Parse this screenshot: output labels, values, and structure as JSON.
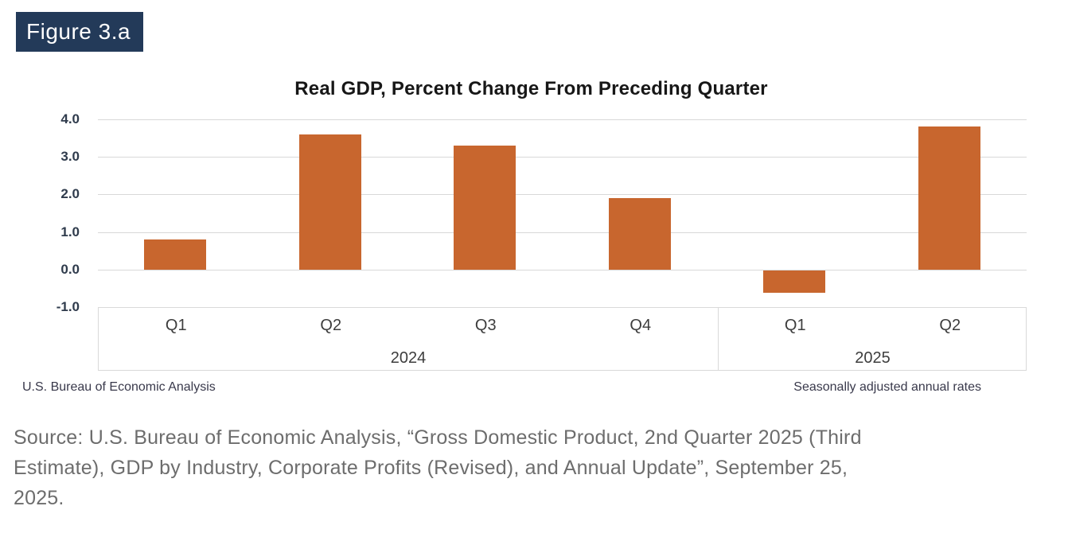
{
  "figure_label": "Figure 3.a",
  "chart_data": {
    "type": "bar",
    "title": "Real GDP, Percent Change From Preceding Quarter",
    "categories": [
      "Q1",
      "Q2",
      "Q3",
      "Q4",
      "Q1",
      "Q2"
    ],
    "values": [
      0.8,
      3.6,
      3.3,
      1.9,
      -0.6,
      3.8
    ],
    "groups": [
      {
        "label": "2024",
        "span": 4
      },
      {
        "label": "2025",
        "span": 2
      }
    ],
    "yticks": [
      "4.0",
      "3.0",
      "2.0",
      "1.0",
      "0.0",
      "-1.0"
    ],
    "ylim": [
      -1.0,
      4.0
    ],
    "grid": true,
    "legend": "none",
    "bar_color": "#C8662E",
    "footer_left": "U.S. Bureau of Economic Analysis",
    "footer_right": "Seasonally adjusted annual rates"
  },
  "source": {
    "lines": [
      "Source: U.S. Bureau of Economic Analysis, “Gross Domestic Product, 2nd Quarter 2025 (Third",
      "Estimate), GDP by Industry, Corporate Profits (Revised), and Annual Update”, September 25,",
      "2025."
    ]
  },
  "colors": {
    "figure_label_bg": "#233A59",
    "figure_label_text": "#FFFFFF",
    "bar": "#C8662E",
    "gridline": "#D8D8D8",
    "axis_band_border": "#D9D9D9",
    "tick_text": "#2F3B4C",
    "category_text": "#3D3D3D",
    "title_text": "#171717",
    "footer_text": "#39394B",
    "source_text": "#6D6D6D"
  }
}
